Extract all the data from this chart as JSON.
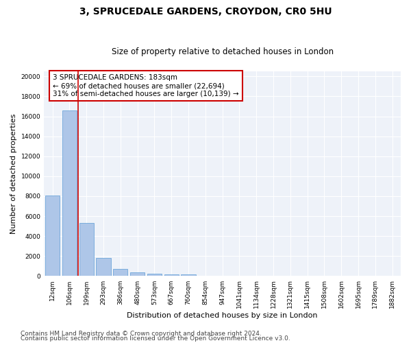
{
  "title": "3, SPRUCEDALE GARDENS, CROYDON, CR0 5HU",
  "subtitle": "Size of property relative to detached houses in London",
  "xlabel": "Distribution of detached houses by size in London",
  "ylabel": "Number of detached properties",
  "categories": [
    "12sqm",
    "106sqm",
    "199sqm",
    "293sqm",
    "386sqm",
    "480sqm",
    "573sqm",
    "667sqm",
    "760sqm",
    "854sqm",
    "947sqm",
    "1041sqm",
    "1134sqm",
    "1228sqm",
    "1321sqm",
    "1415sqm",
    "1508sqm",
    "1602sqm",
    "1695sqm",
    "1789sqm",
    "1882sqm"
  ],
  "bar_heights": [
    8100,
    16600,
    5300,
    1850,
    700,
    350,
    270,
    200,
    150,
    0,
    0,
    0,
    0,
    0,
    0,
    0,
    0,
    0,
    0,
    0,
    0
  ],
  "bar_color": "#aec6e8",
  "bar_edge_color": "#5b9bd5",
  "vline_color": "#cc0000",
  "annotation_text": "3 SPRUCEDALE GARDENS: 183sqm\n← 69% of detached houses are smaller (22,694)\n31% of semi-detached houses are larger (10,139) →",
  "annotation_fontsize": 7.5,
  "annotation_box_color": "#cc0000",
  "ylim": [
    0,
    20500
  ],
  "yticks": [
    0,
    2000,
    4000,
    6000,
    8000,
    10000,
    12000,
    14000,
    16000,
    18000,
    20000
  ],
  "footer1": "Contains HM Land Registry data © Crown copyright and database right 2024.",
  "footer2": "Contains public sector information licensed under the Open Government Licence v3.0.",
  "bg_color": "#eef2f9",
  "grid_color": "#ffffff",
  "title_fontsize": 10,
  "subtitle_fontsize": 8.5,
  "xlabel_fontsize": 8,
  "ylabel_fontsize": 8,
  "tick_fontsize": 6.5,
  "footer_fontsize": 6.5
}
